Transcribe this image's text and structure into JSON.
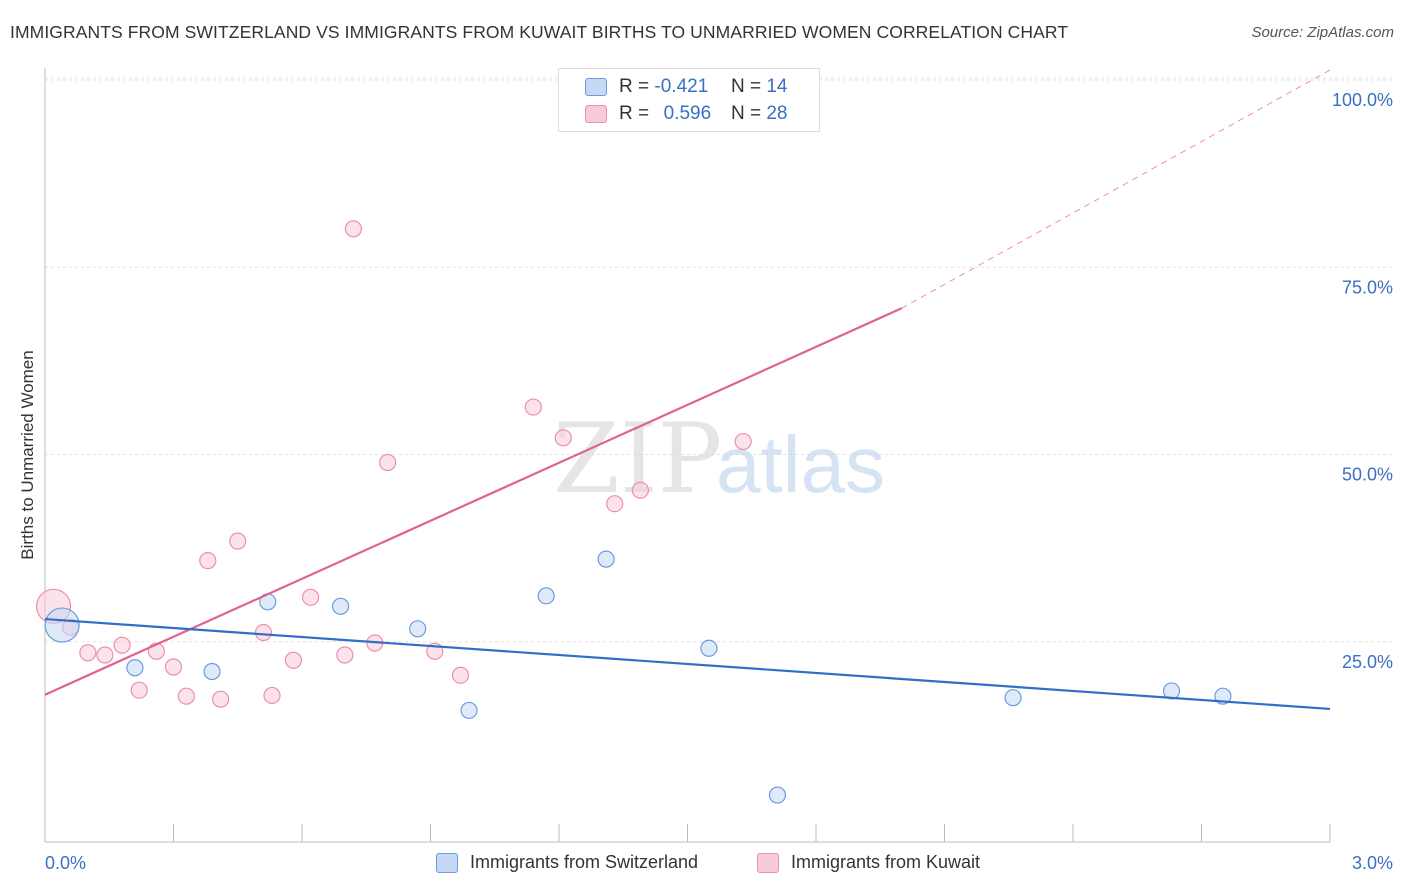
{
  "title": "IMMIGRANTS FROM SWITZERLAND VS IMMIGRANTS FROM KUWAIT BIRTHS TO UNMARRIED WOMEN CORRELATION CHART",
  "source": "Source: ZipAtlas.com",
  "watermark": {
    "zip": "ZIP",
    "atlas": "atlas"
  },
  "legend": {
    "rows": [
      {
        "r_label": "R =",
        "r_value": "-0.421",
        "n_label": "N =",
        "n_value": "14"
      },
      {
        "r_label": "R =",
        "r_value": "0.596",
        "n_label": "N =",
        "n_value": "28"
      }
    ]
  },
  "chart_data": {
    "type": "scatter",
    "title": "IMMIGRANTS FROM SWITZERLAND VS IMMIGRANTS FROM KUWAIT BIRTHS TO UNMARRIED WOMEN CORRELATION CHART",
    "xlabel": "",
    "ylabel": "Births to Unmarried Women",
    "xlim": [
      0,
      3.0
    ],
    "ylim": [
      0,
      100
    ],
    "x_tick_labels": [
      "0.0%",
      "3.0%"
    ],
    "y_tick_labels": [
      "25.0%",
      "50.0%",
      "75.0%",
      "100.0%"
    ],
    "y_ticks": [
      25,
      50,
      75,
      100
    ],
    "grid": true,
    "colors": {
      "switzerland": "#6c9be0",
      "kuwait": "#ec8fac",
      "switzerland_line": "#2f6fc8",
      "kuwait_line": "#e0628f"
    },
    "series": [
      {
        "name": "Immigrants from Switzerland",
        "R": -0.421,
        "N": 14,
        "points": [
          {
            "x": 0.04,
            "y": 29.5,
            "big": true
          },
          {
            "x": 0.21,
            "y": 23.8
          },
          {
            "x": 0.39,
            "y": 23.3
          },
          {
            "x": 0.52,
            "y": 32.6
          },
          {
            "x": 0.69,
            "y": 32.0
          },
          {
            "x": 0.87,
            "y": 29.0
          },
          {
            "x": 0.99,
            "y": 18.1
          },
          {
            "x": 1.17,
            "y": 33.4
          },
          {
            "x": 1.31,
            "y": 38.3
          },
          {
            "x": 1.55,
            "y": 26.4
          },
          {
            "x": 1.71,
            "y": 6.8
          },
          {
            "x": 2.26,
            "y": 19.8
          },
          {
            "x": 2.63,
            "y": 20.7
          },
          {
            "x": 2.75,
            "y": 20.0
          }
        ],
        "trend": {
          "x0": 0,
          "y0": 30.3,
          "x1": 3.0,
          "y1": 18.3
        }
      },
      {
        "name": "Immigrants from Kuwait",
        "R": 0.596,
        "N": 28,
        "points": [
          {
            "x": 0.02,
            "y": 32.0,
            "big": true
          },
          {
            "x": 0.06,
            "y": 29.2
          },
          {
            "x": 0.1,
            "y": 25.8
          },
          {
            "x": 0.14,
            "y": 25.5
          },
          {
            "x": 0.18,
            "y": 26.8
          },
          {
            "x": 0.22,
            "y": 20.8
          },
          {
            "x": 0.26,
            "y": 26.0
          },
          {
            "x": 0.3,
            "y": 23.9
          },
          {
            "x": 0.33,
            "y": 20.0
          },
          {
            "x": 0.38,
            "y": 38.1
          },
          {
            "x": 0.41,
            "y": 19.6
          },
          {
            "x": 0.45,
            "y": 40.7
          },
          {
            "x": 0.51,
            "y": 28.5
          },
          {
            "x": 0.53,
            "y": 20.1
          },
          {
            "x": 0.58,
            "y": 24.8
          },
          {
            "x": 0.62,
            "y": 33.2
          },
          {
            "x": 0.7,
            "y": 25.5
          },
          {
            "x": 0.72,
            "y": 82.4
          },
          {
            "x": 0.77,
            "y": 27.1
          },
          {
            "x": 0.8,
            "y": 51.2
          },
          {
            "x": 0.91,
            "y": 26.0
          },
          {
            "x": 0.97,
            "y": 22.8
          },
          {
            "x": 1.14,
            "y": 58.6
          },
          {
            "x": 1.21,
            "y": 54.5
          },
          {
            "x": 1.33,
            "y": 45.7
          },
          {
            "x": 1.39,
            "y": 47.5
          },
          {
            "x": 1.63,
            "y": 54.0
          },
          {
            "x": 1.0,
            "y": 58.6,
            "hidden": true
          }
        ],
        "trend": {
          "x0": 0,
          "y0": 20.2,
          "x1": 2.0,
          "y1": 71.8,
          "dashed_to_x": 3.0,
          "dashed_to_y": 103.6
        }
      }
    ]
  },
  "bottom_legend": {
    "items": [
      {
        "label": "Immigrants from Switzerland"
      },
      {
        "label": "Immigrants from Kuwait"
      }
    ]
  }
}
